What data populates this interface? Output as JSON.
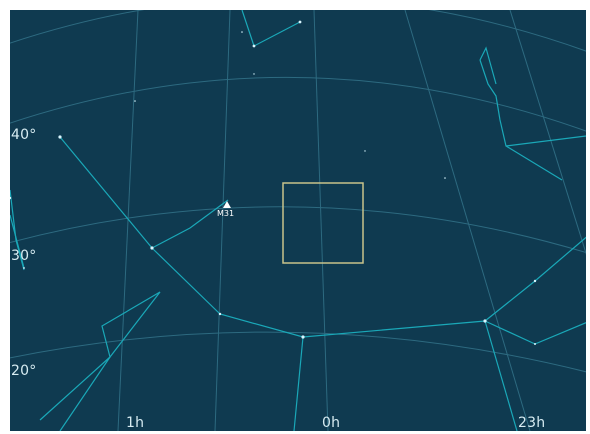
{
  "sky_map": {
    "colors": {
      "background": "#0f3a50",
      "grid": "#2d6a80",
      "constellation_lines": "#1aa8b8",
      "stars": "#d8f6ff",
      "fov_box": "#c9c38b",
      "labels": "#d7ecf2"
    },
    "dec_labels": [
      "40°",
      "30°",
      "20°"
    ],
    "ra_labels": [
      "1h",
      "0h",
      "23h"
    ],
    "object": {
      "label": "M31",
      "icon": "triangle-icon"
    }
  }
}
